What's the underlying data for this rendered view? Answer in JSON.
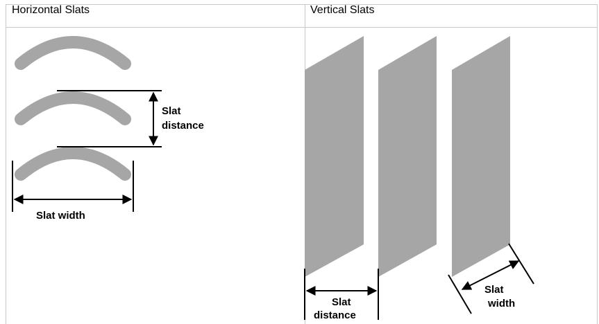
{
  "header": {
    "left_title": "Horizontal Slats",
    "right_title": "Vertical Slats"
  },
  "horizontal": {
    "distance_label_line1": "Slat",
    "distance_label_line2": "distance",
    "width_label": "Slat width"
  },
  "vertical": {
    "distance_label_line1": "Slat",
    "distance_label_line2": "distance",
    "width_label_line1": "Slat",
    "width_label_line2": "width"
  },
  "colors": {
    "slat": "#a6a6a6",
    "border": "#c8c8c8",
    "line": "#000000"
  }
}
